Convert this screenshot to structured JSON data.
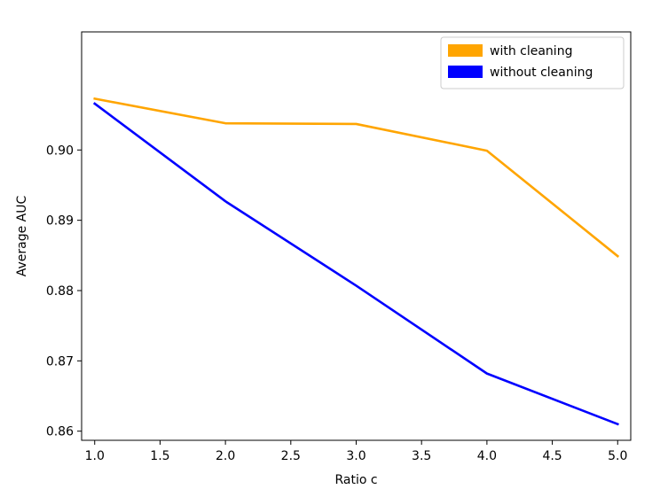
{
  "chart_data": {
    "type": "line",
    "title": "",
    "xlabel": "Ratio c",
    "ylabel": "Average AUC",
    "x": [
      1.0,
      2.0,
      3.0,
      4.0,
      5.0
    ],
    "xlim": [
      0.9,
      5.1
    ],
    "ylim": [
      0.8587,
      0.9168
    ],
    "xticks": [
      1.0,
      1.5,
      2.0,
      2.5,
      3.0,
      3.5,
      4.0,
      4.5,
      5.0
    ],
    "xtick_labels": [
      "1.0",
      "1.5",
      "2.0",
      "2.5",
      "3.0",
      "3.5",
      "4.0",
      "4.5",
      "5.0"
    ],
    "yticks": [
      0.86,
      0.87,
      0.88,
      0.89,
      0.9
    ],
    "ytick_labels": [
      "0.86",
      "0.87",
      "0.88",
      "0.89",
      "0.90"
    ],
    "grid": false,
    "legend_position": "top-right",
    "series": [
      {
        "name": "with cleaning",
        "color": "#ffa500",
        "values": [
          0.9073,
          0.9038,
          0.9037,
          0.8999,
          0.8849
        ]
      },
      {
        "name": "without cleaning",
        "color": "#0000ff",
        "values": [
          0.9066,
          0.8927,
          0.8807,
          0.8682,
          0.861
        ]
      }
    ]
  }
}
